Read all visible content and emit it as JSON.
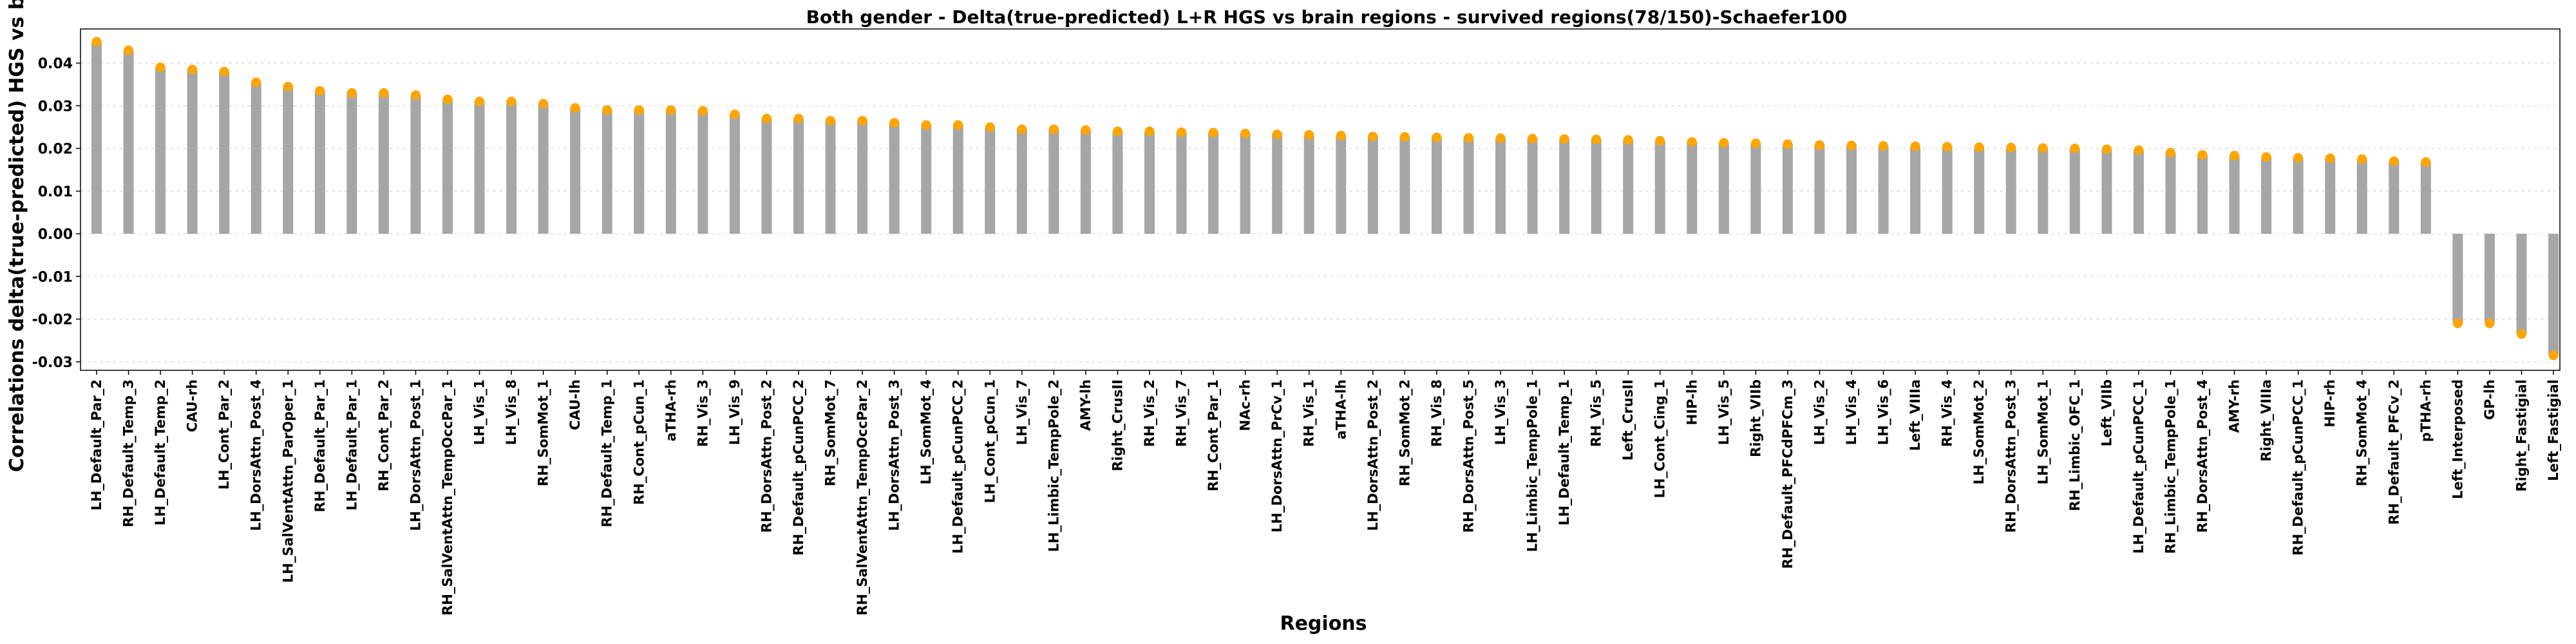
{
  "chart_data": {
    "type": "bar",
    "title": "Both gender - Delta(true-predicted) L+R HGS vs brain regions - survived regions(78/150)-Schaefer100",
    "xlabel": "Regions",
    "ylabel": "Correlations delta(true-predicted) HGS vs brain",
    "ylim": [
      -0.032,
      0.048
    ],
    "yticks": [
      -0.03,
      -0.02,
      -0.01,
      0.0,
      0.01,
      0.02,
      0.03,
      0.04
    ],
    "ytick_labels": [
      "-0.03",
      "-0.02",
      "-0.01",
      "0.00",
      "0.01",
      "0.02",
      "0.03",
      "0.04"
    ],
    "grid": "horizontal",
    "bar_color": "#a6a6a6",
    "marker_color": "#ffa500",
    "categories": [
      "LH_Default_Par_2",
      "RH_Default_Temp_3",
      "LH_Default_Temp_2",
      "CAU-rh",
      "LH_Cont_Par_2",
      "LH_DorsAttn_Post_4",
      "LH_SalVentAttn_ParOper_1",
      "RH_Default_Par_1",
      "LH_Default_Par_1",
      "RH_Cont_Par_2",
      "LH_DorsAttn_Post_1",
      "RH_SalVentAttn_TempOccPar_1",
      "LH_Vis_1",
      "LH_Vis_8",
      "RH_SomMot_1",
      "CAU-lh",
      "RH_Default_Temp_1",
      "RH_Cont_pCun_1",
      "aTHA-rh",
      "RH_Vis_3",
      "LH_Vis_9",
      "RH_DorsAttn_Post_2",
      "RH_Default_pCunPCC_2",
      "RH_SomMot_7",
      "RH_SalVentAttn_TempOccPar_2",
      "LH_DorsAttn_Post_3",
      "LH_SomMot_4",
      "LH_Default_pCunPCC_2",
      "LH_Cont_pCun_1",
      "LH_Vis_7",
      "LH_Limbic_TempPole_2",
      "AMY-lh",
      "Right_CrusII",
      "RH_Vis_2",
      "RH_Vis_7",
      "RH_Cont_Par_1",
      "NAc-rh",
      "LH_DorsAttn_PrCv_1",
      "RH_Vis_1",
      "aTHA-lh",
      "LH_DorsAttn_Post_2",
      "RH_SomMot_2",
      "RH_Vis_8",
      "RH_DorsAttn_Post_5",
      "LH_Vis_3",
      "LH_Limbic_TempPole_1",
      "LH_Default_Temp_1",
      "RH_Vis_5",
      "Left_CrusII",
      "LH_Cont_Cing_1",
      "HIP-lh",
      "LH_Vis_5",
      "Right_VIIb",
      "RH_Default_PFCdPFCm_3",
      "LH_Vis_2",
      "LH_Vis_4",
      "LH_Vis_6",
      "Left_VIIIa",
      "RH_Vis_4",
      "LH_SomMot_2",
      "RH_DorsAttn_Post_3",
      "LH_SomMot_1",
      "RH_Limbic_OFC_1",
      "Left_VIIb",
      "LH_Default_pCunPCC_1",
      "RH_Limbic_TempPole_1",
      "RH_DorsAttn_Post_4",
      "AMY-rh",
      "Right_VIIIa",
      "RH_Default_pCunPCC_1",
      "HIP-rh",
      "RH_SomMot_4",
      "RH_Default_PFCv_2",
      "pTHA-rh",
      "Left_Interposed",
      "GP-lh",
      "Right_Fastigial",
      "Left_Fastigial"
    ],
    "values": [
      0.045,
      0.043,
      0.039,
      0.0385,
      0.038,
      0.0355,
      0.0345,
      0.0335,
      0.033,
      0.033,
      0.0325,
      0.0315,
      0.031,
      0.031,
      0.0305,
      0.0295,
      0.029,
      0.029,
      0.029,
      0.0288,
      0.028,
      0.027,
      0.027,
      0.0265,
      0.0265,
      0.026,
      0.0255,
      0.0255,
      0.025,
      0.0245,
      0.0245,
      0.0243,
      0.024,
      0.024,
      0.0238,
      0.0237,
      0.0235,
      0.0233,
      0.0232,
      0.023,
      0.0228,
      0.0227,
      0.0226,
      0.0225,
      0.0224,
      0.0223,
      0.0222,
      0.0221,
      0.022,
      0.0218,
      0.0215,
      0.0213,
      0.0212,
      0.021,
      0.0208,
      0.0207,
      0.0206,
      0.0205,
      0.0204,
      0.0203,
      0.0202,
      0.0201,
      0.02,
      0.0198,
      0.0196,
      0.019,
      0.0185,
      0.0183,
      0.018,
      0.0178,
      0.0177,
      0.0175,
      0.017,
      0.0168,
      -0.021,
      -0.021,
      -0.0235,
      -0.0285
    ]
  }
}
